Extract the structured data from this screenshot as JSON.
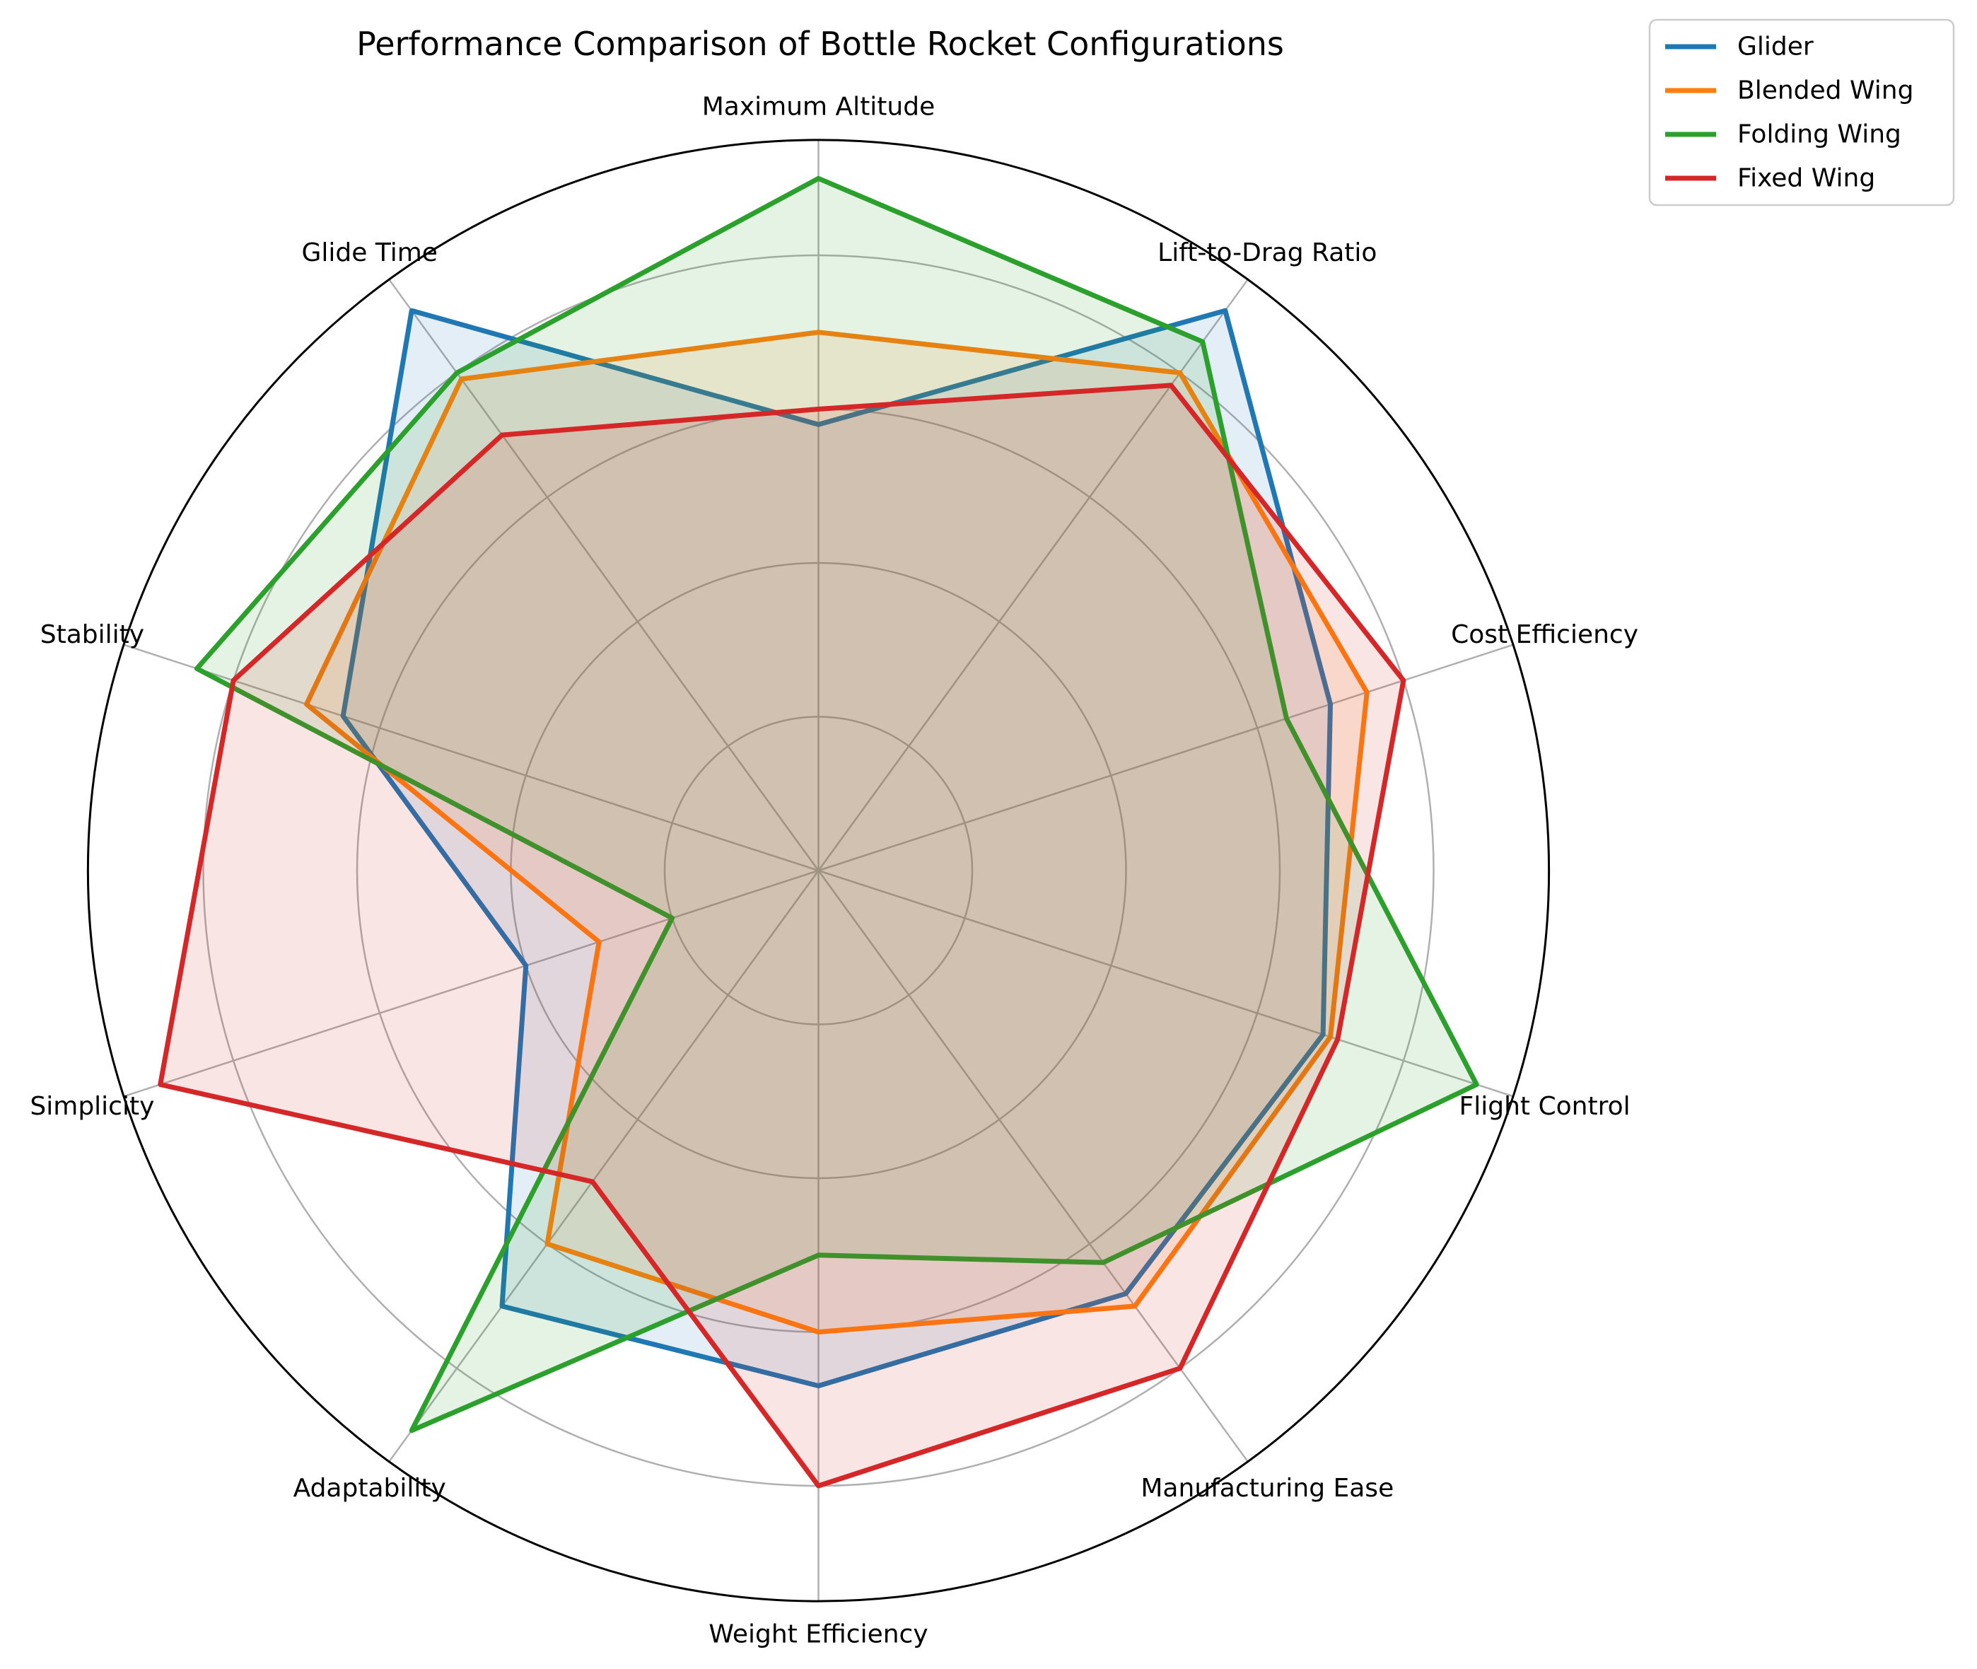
{
  "title": "Performance Comparison of Bottle Rocket Configurations",
  "chart_data": {
    "type": "radar",
    "categories": [
      "Maximum Altitude",
      "Lift-to-Drag Ratio",
      "Cost Efficiency",
      "Flight Control",
      "Manufacturing Ease",
      "Weight Efficiency",
      "Adaptability",
      "Simplicity",
      "Stability",
      "Glide Time"
    ],
    "series": [
      {
        "name": "Glider",
        "color": "#1f77b4",
        "values": [
          5.8,
          9.0,
          7.0,
          6.9,
          6.8,
          6.7,
          7.0,
          4.0,
          6.5,
          9.0
        ]
      },
      {
        "name": "Blended Wing",
        "color": "#ff7f0e",
        "values": [
          7.0,
          8.0,
          7.5,
          7.0,
          7.0,
          6.0,
          6.0,
          3.0,
          7.0,
          7.9
        ]
      },
      {
        "name": "Folding Wing",
        "color": "#2ca02c",
        "values": [
          9.0,
          8.5,
          6.4,
          9.0,
          6.3,
          5.0,
          9.0,
          2.0,
          8.5,
          8.0
        ]
      },
      {
        "name": "Fixed Wing",
        "color": "#d62728",
        "values": [
          6.0,
          7.8,
          8.0,
          7.1,
          8.0,
          8.0,
          5.0,
          9.0,
          8.0,
          7.0
        ]
      }
    ],
    "rmin": 0,
    "rmax": 9.5,
    "ring_values": [
      2,
      4,
      6,
      8
    ],
    "show_r_tick_labels": false,
    "grid": true,
    "legend_position": "upper right",
    "fill_opacity": 0.12,
    "grid_color": "#b0b0b0",
    "spine_color": "#000000",
    "title_color": "#000000",
    "label_color": "#000000"
  }
}
